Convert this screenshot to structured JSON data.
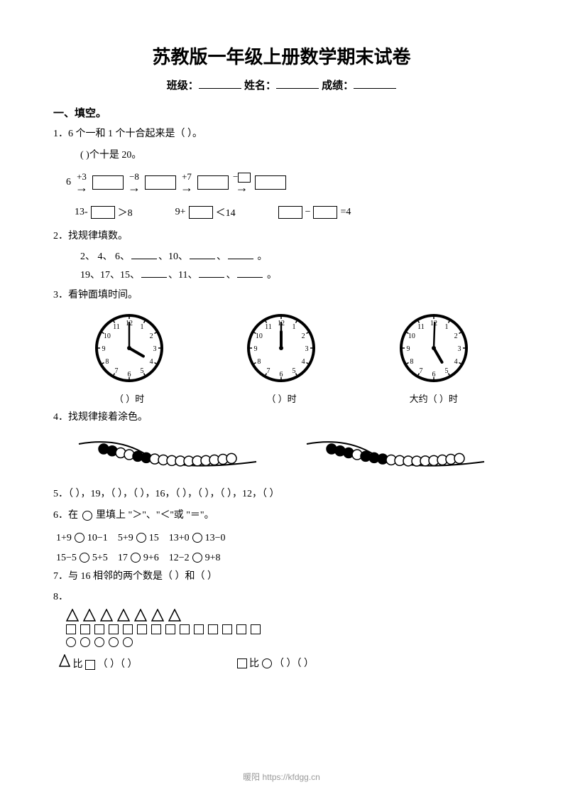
{
  "title": "苏教版一年级上册数学期末试卷",
  "header": {
    "class": "班级：",
    "name": "姓名：",
    "score": "成绩："
  },
  "section1": "一、填空。",
  "q1": {
    "line1": "1．6 个一和 1 个十合起来是（    ）。",
    "line2": "(       )个十是 20。",
    "chain": {
      "start": "6",
      "op1": "+3",
      "op2": "−8",
      "op3": "+7",
      "op4": "−"
    },
    "ineq1_a": "13-",
    "ineq1_b": "＞8",
    "ineq2_a": "9+",
    "ineq2_b": "＜14",
    "ineq3_mid": "−",
    "ineq3_end": "=4"
  },
  "q2": {
    "head": "2．找规律填数。",
    "seq1_a": "2、 4、 6、",
    "seq1_b": "、10、",
    "seq1_c": "、",
    "seq1_d": " 。",
    "seq2_a": "19、17、15、",
    "seq2_b": "、11、",
    "seq2_c": "、",
    "seq2_d": " 。"
  },
  "q3": {
    "head": "3．看钟面填时间。",
    "lbl1": "（    ）时",
    "lbl2": "（    ）时",
    "lbl3": "大约（    ）时",
    "clocks": [
      {
        "hour_angle": -30,
        "minute_angle": 90
      },
      {
        "hour_angle": 90,
        "minute_angle": 90
      },
      {
        "hour_angle": -60,
        "minute_angle": 88
      }
    ],
    "clock_style": {
      "stroke": "#000000",
      "stroke_width": 2,
      "face_fill": "#ffffff",
      "radius": 46
    }
  },
  "q4": {
    "head": "4．找规律接着涂色。",
    "bead_patterns": [
      [
        "b",
        "b",
        "w",
        "w",
        "b",
        "b",
        "w",
        "w",
        "w",
        "w",
        "w",
        "w",
        "w",
        "w",
        "w",
        "w"
      ],
      [
        "b",
        "b",
        "b",
        "w",
        "b",
        "b",
        "b",
        "w",
        "w",
        "w",
        "w",
        "w",
        "w",
        "w",
        "w",
        "w"
      ]
    ]
  },
  "q5": "5．（   ），19，（   ），（   ），16，（   ），（   ），（   ），12，（   ）",
  "q6": {
    "head": "6．在       里填上 \"＞\"、\"＜''\" 或 \"＝\"。",
    "row1": {
      "a": "1+9",
      "b": "10−1",
      "c": "5+9",
      "d": "15",
      "e": "13+0",
      "f": "13−0"
    },
    "row2": {
      "a": "15−5",
      "b": "5+5",
      "c": "17",
      "d": "9+6",
      "e": "12−2",
      "f": "9+8"
    }
  },
  "q7": "7．与 16 相邻的两个数是（    ）和（    ）",
  "q8": {
    "head": "8．",
    "counts": {
      "triangles": 7,
      "squares": 14,
      "circles": 5
    },
    "compare1_a": "比",
    "compare1_b": "（       ）（       ）",
    "compare2_a": "比",
    "compare2_b": "（       ）（       ）"
  },
  "footer": "暖阳 https://kfdgg.cn"
}
